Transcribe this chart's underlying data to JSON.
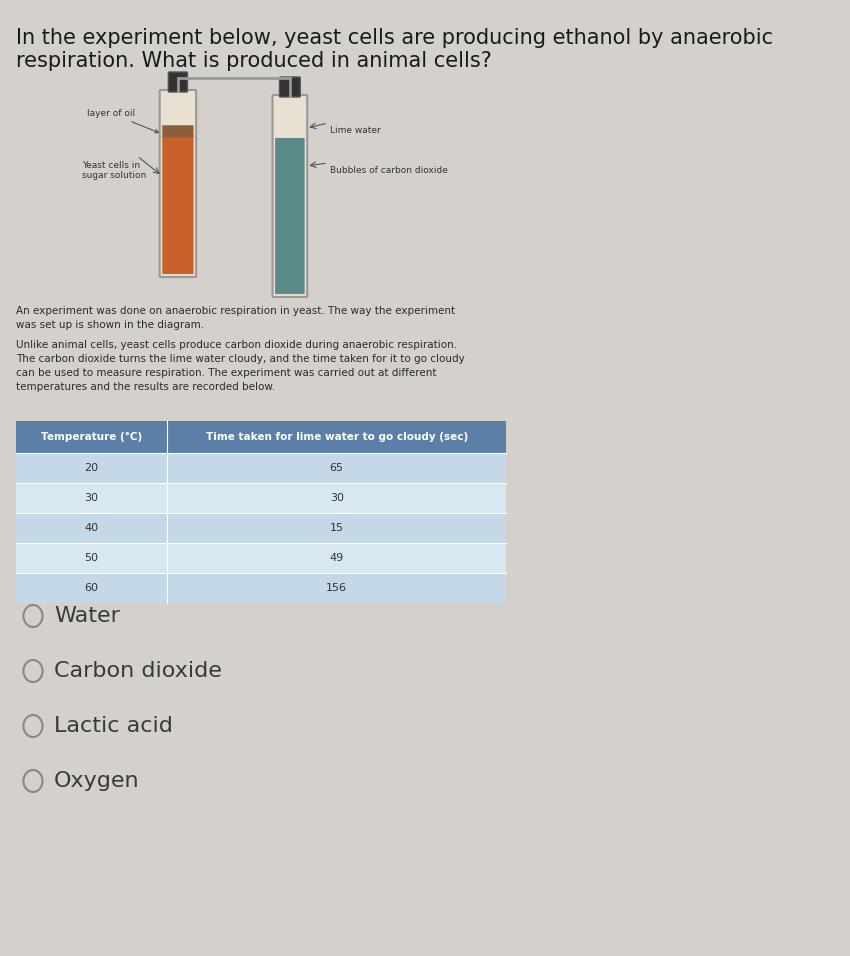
{
  "bg_color": "#d4d0cb",
  "title_line1": "In the experiment below, yeast cells are producing ethanol by anaerobic",
  "title_line2": "respiration. What is produced in animal cells?",
  "title_fontsize": 15,
  "desc1": "An experiment was done on anaerobic respiration in yeast. The way the experiment\nwas set up is shown in the diagram.",
  "desc2": "Unlike animal cells, yeast cells produce carbon dioxide during anaerobic respiration.\nThe carbon dioxide turns the lime water cloudy, and the time taken for it to go cloudy\ncan be used to measure respiration. The experiment was carried out at different\ntemperatures and the results are recorded below.",
  "table_header": [
    "Temperature (°C)",
    "Time taken for lime water to go cloudy (sec)"
  ],
  "table_header_bg": "#5b7fa6",
  "table_header_fg": "#ffffff",
  "table_rows": [
    [
      "20",
      "65"
    ],
    [
      "30",
      "30"
    ],
    [
      "40",
      "15"
    ],
    [
      "50",
      "49"
    ],
    [
      "60",
      "156"
    ]
  ],
  "table_row_bg1": "#c5d8e8",
  "table_row_bg2": "#d8e8f0",
  "table_text_color": "#333333",
  "options": [
    "Water",
    "Carbon dioxide",
    "Lactic acid",
    "Oxygen"
  ],
  "option_fontsize": 16,
  "option_circle_color": "#888888",
  "diagram_labels": {
    "layer_of_oil": "layer of oil",
    "yeast_cells": "Yeast cells in\nsugar solution",
    "lime_water": "Lime water",
    "bubbles": "Bubbles of carbon dioxide"
  }
}
